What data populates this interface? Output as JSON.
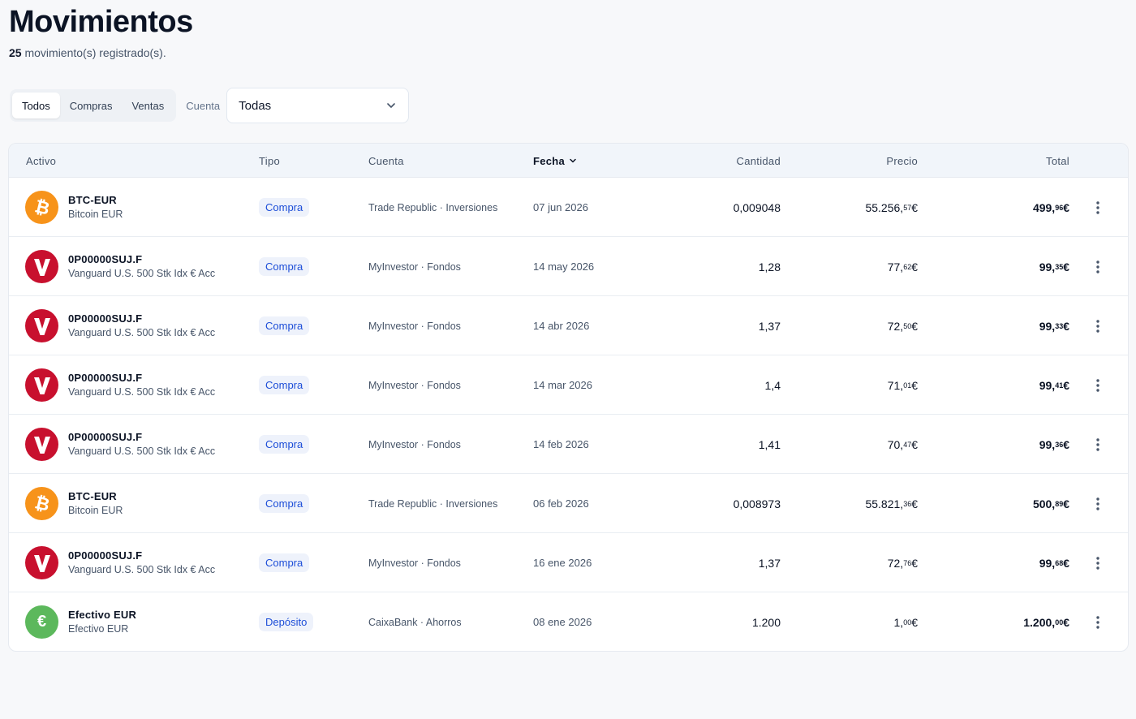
{
  "page": {
    "title": "Movimientos",
    "count": "25",
    "count_suffix": "movimiento(s) registrado(s)."
  },
  "filters": {
    "segments": [
      "Todos",
      "Compras",
      "Ventas"
    ],
    "active_segment": "Todos",
    "account_label": "Cuenta",
    "account_value": "Todas"
  },
  "table": {
    "headers": {
      "asset": "Activo",
      "type": "Tipo",
      "account": "Cuenta",
      "date": "Fecha",
      "quantity": "Cantidad",
      "price": "Precio",
      "total": "Total"
    },
    "sorted_by": "date",
    "rows": [
      {
        "icon": "bitcoin-icon",
        "symbol": "BTC-EUR",
        "name": "Bitcoin EUR",
        "type": "Compra",
        "account": "Trade Republic · Inversiones",
        "date": "07 jun 2026",
        "quantity": "0,009048",
        "price_int": "55.256,",
        "price_dec": "57",
        "total_int": "499,",
        "total_dec": "96",
        "currency": "€"
      },
      {
        "icon": "vanguard-icon",
        "symbol": "0P00000SUJ.F",
        "name": "Vanguard U.S. 500 Stk Idx € Acc",
        "type": "Compra",
        "account": "MyInvestor · Fondos",
        "date": "14 may 2026",
        "quantity": "1,28",
        "price_int": "77,",
        "price_dec": "62",
        "total_int": "99,",
        "total_dec": "35",
        "currency": "€"
      },
      {
        "icon": "vanguard-icon",
        "symbol": "0P00000SUJ.F",
        "name": "Vanguard U.S. 500 Stk Idx € Acc",
        "type": "Compra",
        "account": "MyInvestor · Fondos",
        "date": "14 abr 2026",
        "quantity": "1,37",
        "price_int": "72,",
        "price_dec": "50",
        "total_int": "99,",
        "total_dec": "33",
        "currency": "€"
      },
      {
        "icon": "vanguard-icon",
        "symbol": "0P00000SUJ.F",
        "name": "Vanguard U.S. 500 Stk Idx € Acc",
        "type": "Compra",
        "account": "MyInvestor · Fondos",
        "date": "14 mar 2026",
        "quantity": "1,4",
        "price_int": "71,",
        "price_dec": "01",
        "total_int": "99,",
        "total_dec": "41",
        "currency": "€"
      },
      {
        "icon": "vanguard-icon",
        "symbol": "0P00000SUJ.F",
        "name": "Vanguard U.S. 500 Stk Idx € Acc",
        "type": "Compra",
        "account": "MyInvestor · Fondos",
        "date": "14 feb 2026",
        "quantity": "1,41",
        "price_int": "70,",
        "price_dec": "47",
        "total_int": "99,",
        "total_dec": "36",
        "currency": "€"
      },
      {
        "icon": "bitcoin-icon",
        "symbol": "BTC-EUR",
        "name": "Bitcoin EUR",
        "type": "Compra",
        "account": "Trade Republic · Inversiones",
        "date": "06 feb 2026",
        "quantity": "0,008973",
        "price_int": "55.821,",
        "price_dec": "36",
        "total_int": "500,",
        "total_dec": "89",
        "currency": "€"
      },
      {
        "icon": "vanguard-icon",
        "symbol": "0P00000SUJ.F",
        "name": "Vanguard U.S. 500 Stk Idx € Acc",
        "type": "Compra",
        "account": "MyInvestor · Fondos",
        "date": "16 ene 2026",
        "quantity": "1,37",
        "price_int": "72,",
        "price_dec": "76",
        "total_int": "99,",
        "total_dec": "68",
        "currency": "€"
      },
      {
        "icon": "euro-icon",
        "symbol": "Efectivo EUR",
        "name": "Efectivo EUR",
        "type": "Depósito",
        "account": "CaixaBank · Ahorros",
        "date": "08 ene 2026",
        "quantity": "1.200",
        "price_int": "1,",
        "price_dec": "00",
        "total_int": "1.200,",
        "total_dec": "00",
        "currency": "€"
      }
    ]
  },
  "colors": {
    "badge_text": "#1d4ed8",
    "badge_bg": "#eef2fb",
    "bitcoin": "#f7931a",
    "vanguard": "#c8102e",
    "cash": "#5cb85c"
  }
}
